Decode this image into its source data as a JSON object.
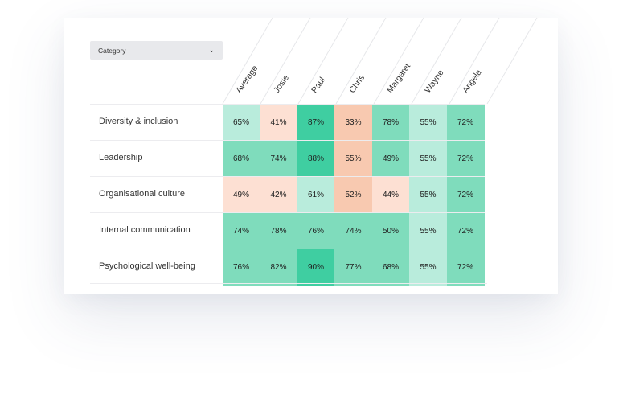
{
  "filter": {
    "label": "Category",
    "chevron_icon": "chevron-down-icon"
  },
  "columns": [
    "Average",
    "Josie",
    "Paul",
    "Chris",
    "Margaret",
    "Wayne",
    "Angela"
  ],
  "rows": [
    {
      "label": "Diversity & inclusion",
      "values": [
        "65%",
        "41%",
        "87%",
        "33%",
        "78%",
        "55%",
        "72%"
      ]
    },
    {
      "label": "Leadership",
      "values": [
        "68%",
        "74%",
        "88%",
        "55%",
        "49%",
        "55%",
        "72%"
      ]
    },
    {
      "label": "Organisational culture",
      "values": [
        "49%",
        "42%",
        "61%",
        "52%",
        "44%",
        "55%",
        "72%"
      ]
    },
    {
      "label": "Internal communication",
      "values": [
        "74%",
        "78%",
        "76%",
        "74%",
        "50%",
        "55%",
        "72%"
      ]
    },
    {
      "label": "Psychological well-being",
      "values": [
        "76%",
        "82%",
        "90%",
        "77%",
        "68%",
        "55%",
        "72%"
      ]
    }
  ],
  "colors": {
    "green_high": "#3fcea1",
    "green_mid": "#7fdcbc",
    "green_low": "#b9ecdc",
    "peach_high": "#f8c9b0",
    "peach_low": "#fde0d3"
  }
}
